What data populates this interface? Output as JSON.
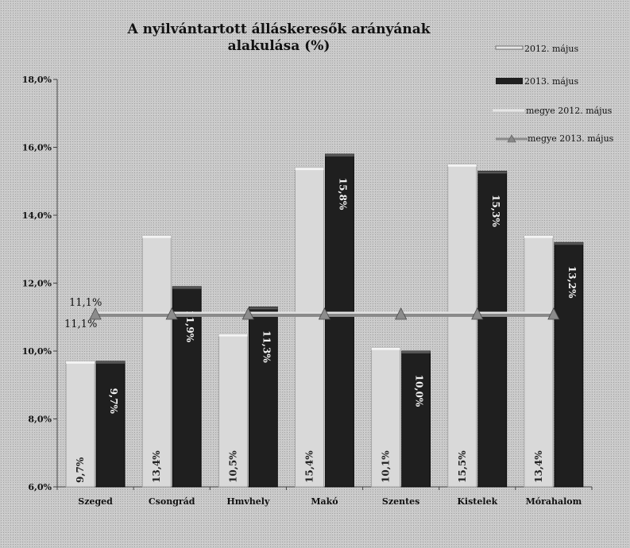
{
  "chart_data": {
    "type": "bar",
    "title_line1": "A nyilvántartott álláskeresők arányának",
    "title_line2": "alakulása (%)",
    "categories": [
      "Szeged",
      "Csongrád",
      "Hmvhely",
      "Makó",
      "Szentes",
      "Kistelek",
      "Mórahalom"
    ],
    "series": [
      {
        "name": "2012. május",
        "values": [
          9.7,
          13.4,
          10.5,
          15.4,
          10.1,
          15.5,
          13.4
        ],
        "labels": [
          "9,7%",
          "13,4%",
          "10,5%",
          "15,4%",
          "10,1%",
          "15,5%",
          "13,4%"
        ],
        "color": "#d9d9d9"
      },
      {
        "name": "2013. május",
        "values": [
          9.7,
          11.9,
          11.3,
          15.8,
          10.0,
          15.3,
          13.2
        ],
        "labels": [
          "9,7%",
          "11,9%",
          "11,3%",
          "15,8%",
          "10,0%",
          "15,3%",
          "13,2%"
        ],
        "color": "#1f1f1f"
      }
    ],
    "lines": [
      {
        "name": "megye 2012. május",
        "value": 11.1,
        "label": "11,1%",
        "color": "#e0e0e0"
      },
      {
        "name": "megye 2013. május",
        "value": 11.1,
        "label": "11,1%",
        "color": "#8a8a8a"
      }
    ],
    "y_ticks": [
      "6,0%",
      "8,0%",
      "10,0%",
      "12,0%",
      "14,0%",
      "16,0%",
      "18,0%"
    ],
    "y_tick_values": [
      6,
      8,
      10,
      12,
      14,
      16,
      18
    ],
    "ylim": [
      6,
      18
    ],
    "legend_position": "right",
    "grid": false
  }
}
